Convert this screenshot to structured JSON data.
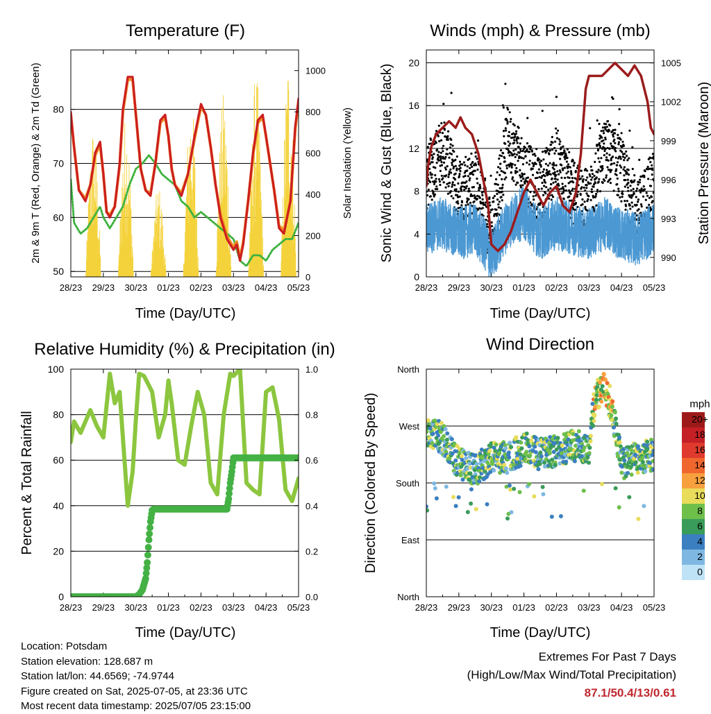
{
  "panels": {
    "temp": {
      "title": "Temperature (F)",
      "ylabel_left": "2m & 9m T (Red, Orange) & 2m Td (Green)",
      "ylabel_right": "Solar Insolation (Yellow)",
      "xlabel": "Time (Day/UTC)"
    },
    "wind": {
      "title": "Winds (mph) & Pressure (mb)",
      "ylabel_left": "Sonic Wind & Gust (Blue, Black)",
      "ylabel_right": "Station Pressure (Maroon)",
      "xlabel": "Time (Day/UTC)"
    },
    "rh": {
      "title": "Relative Humidity (%) & Precipitation (in)",
      "ylabel_left": "Percent & Total Rainfall",
      "xlabel": "Time (Day/UTC)"
    },
    "dir": {
      "title": "Wind Direction",
      "ylabel_left": "Direction (Colored By Speed)",
      "xlabel": "Time (Day/UTC)",
      "colorbar_title": "mph"
    }
  },
  "info": {
    "location": "Location: Potsdam",
    "elevation": "Station elevation: 128.687 m",
    "latlon": "Station lat/lon: 44.6569; -74.9744",
    "created": "Figure created on Sat, 2025-07-05, at 23:36 UTC",
    "recent": "Most recent data timestamp: 2025/07/05 23:15:00"
  },
  "extremes": {
    "heading": "Extremes For Past 7 Days",
    "subheading": "(High/Low/Max Wind/Total Precipitation)",
    "values": "87.1/50.4/13/0.61"
  },
  "chart_data": [
    {
      "id": "temp",
      "type": "line",
      "title": "Temperature (F)",
      "xlabel": "Time (Day/UTC)",
      "ylabel": "2m & 9m T (Red, Orange) & 2m Td (Green)",
      "y2label": "Solar Insolation (Yellow)",
      "xticks": [
        "28/23",
        "29/23",
        "30/23",
        "01/23",
        "02/23",
        "03/23",
        "04/23",
        "05/23"
      ],
      "ylim": [
        49,
        91
      ],
      "yticks": [
        50,
        60,
        70,
        80
      ],
      "y2lim": [
        0,
        1100
      ],
      "y2ticks": [
        0,
        200,
        400,
        600,
        800,
        1000
      ],
      "grid": true,
      "series": [
        {
          "name": "2m T",
          "color": "#cc1f1f",
          "axis": "left",
          "x": [
            0,
            0.1,
            0.25,
            0.45,
            0.6,
            0.75,
            0.9,
            1.0,
            1.1,
            1.2,
            1.35,
            1.5,
            1.6,
            1.75,
            1.9,
            2.0,
            2.15,
            2.3,
            2.45,
            2.6,
            2.75,
            2.9,
            3.0,
            3.1,
            3.2,
            3.4,
            3.6,
            3.8,
            4.0,
            4.15,
            4.3,
            4.45,
            4.6,
            4.8,
            5.0,
            5.1,
            5.2,
            5.3,
            5.45,
            5.6,
            5.75,
            5.9,
            6.0,
            6.1,
            6.25,
            6.4,
            6.55,
            6.75,
            6.9,
            7.0
          ],
          "y": [
            79.5,
            73,
            65,
            63,
            66,
            72,
            74,
            68,
            61,
            60,
            62,
            70,
            80,
            86,
            86,
            79,
            69,
            65,
            64,
            70,
            78,
            79,
            75,
            69,
            66,
            64,
            68,
            75,
            81,
            79,
            73,
            66,
            60,
            56,
            54,
            55,
            52,
            55,
            63,
            72,
            78,
            79,
            75,
            71,
            65,
            58,
            57,
            63,
            77,
            82
          ]
        },
        {
          "name": "9m T",
          "color": "#f08a24",
          "axis": "left",
          "x": [
            0,
            0.1,
            0.25,
            0.45,
            0.6,
            0.75,
            0.9,
            1.0,
            1.1,
            1.2,
            1.35,
            1.5,
            1.6,
            1.75,
            1.9,
            2.0,
            2.15,
            2.3,
            2.45,
            2.6,
            2.75,
            2.9,
            3.0,
            3.1,
            3.2,
            3.4,
            3.6,
            3.8,
            4.0,
            4.15,
            4.3,
            4.45,
            4.6,
            4.8,
            5.0,
            5.1,
            5.2,
            5.3,
            5.45,
            5.6,
            5.75,
            5.9,
            6.0,
            6.1,
            6.25,
            6.4,
            6.55,
            6.75,
            6.9,
            7.0
          ],
          "y": [
            79,
            73,
            65,
            63.5,
            66,
            71.5,
            73.5,
            68,
            61,
            60.5,
            62,
            69.5,
            79.5,
            85.5,
            85.5,
            79,
            69,
            65,
            64.5,
            70,
            77.5,
            78.5,
            75,
            69,
            66,
            64.5,
            68,
            74.5,
            80.5,
            79,
            73,
            66,
            60.5,
            56.5,
            54.5,
            55.5,
            52.5,
            55.5,
            63,
            71.5,
            77.5,
            78.5,
            75,
            71,
            65,
            58.5,
            57.5,
            63,
            76.5,
            81.5
          ]
        },
        {
          "name": "2m Td",
          "color": "#3fb23f",
          "axis": "left",
          "x": [
            0,
            0.1,
            0.3,
            0.5,
            0.7,
            0.9,
            1.0,
            1.2,
            1.4,
            1.6,
            1.8,
            2.0,
            2.2,
            2.4,
            2.6,
            2.8,
            3.0,
            3.2,
            3.4,
            3.6,
            3.8,
            4.0,
            4.2,
            4.4,
            4.6,
            4.8,
            5.0,
            5.2,
            5.4,
            5.6,
            5.8,
            6.0,
            6.2,
            6.4,
            6.6,
            6.8,
            7.0
          ],
          "y": [
            67,
            59,
            57,
            58,
            60,
            62,
            60,
            58,
            60,
            62,
            66,
            69,
            70,
            71.5,
            70,
            68,
            67,
            66,
            63,
            62,
            60,
            61,
            60,
            59,
            58,
            57,
            56,
            52,
            51,
            53,
            53,
            52,
            54,
            55,
            56,
            56,
            59
          ]
        },
        {
          "name": "Solar Insolation",
          "color": "#f4d23c",
          "axis": "right",
          "days": [
            0,
            1,
            2,
            3,
            4,
            5,
            6
          ],
          "daily_peak": [
            750,
            800,
            450,
            880,
            900,
            1000,
            1100
          ]
        }
      ]
    },
    {
      "id": "wind",
      "type": "scatter",
      "title": "Winds (mph) & Pressure (mb)",
      "xlabel": "Time (Day/UTC)",
      "ylabel": "Sonic Wind & Gust (Blue, Black)",
      "y2label": "Station Pressure (Maroon)",
      "xticks": [
        "28/23",
        "29/23",
        "30/23",
        "01/23",
        "02/23",
        "03/23",
        "04/23",
        "05/23"
      ],
      "ylim": [
        0,
        21.2
      ],
      "yticks": [
        0,
        4,
        8,
        12,
        16,
        20
      ],
      "y2lim": [
        988.5,
        1006
      ],
      "y2ticks": [
        990,
        993,
        996,
        999,
        1002,
        1005
      ],
      "grid": true,
      "series": [
        {
          "name": "Sonic Wind",
          "color": "#4b98d3",
          "axis": "left",
          "x": [
            0,
            0.5,
            1.0,
            1.5,
            2.0,
            2.5,
            3.0,
            3.5,
            4.0,
            4.5,
            5.0,
            5.5,
            6.0,
            6.5,
            7.0
          ],
          "y": [
            4.5,
            5,
            4,
            4.5,
            2,
            5,
            6,
            4,
            5,
            4.5,
            4,
            5,
            4,
            3.5,
            4.5
          ]
        },
        {
          "name": "Gust",
          "color": "#000000",
          "axis": "left",
          "x": [
            0,
            0.5,
            1.0,
            1.5,
            2.0,
            2.5,
            3.0,
            3.5,
            4.0,
            4.5,
            5.0,
            5.5,
            6.0,
            6.5,
            7.0
          ],
          "y": [
            9,
            12,
            8,
            9,
            4,
            13,
            10,
            8,
            11,
            8,
            7,
            12,
            10,
            6,
            9
          ]
        },
        {
          "name": "Station Pressure",
          "color": "#9b1c1c",
          "axis": "right",
          "x": [
            0,
            0.05,
            0.15,
            0.3,
            0.5,
            0.7,
            0.9,
            1.05,
            1.2,
            1.4,
            1.6,
            1.75,
            1.9,
            2.0,
            2.2,
            2.4,
            2.6,
            2.8,
            3.0,
            3.2,
            3.4,
            3.6,
            3.8,
            4.0,
            4.2,
            4.4,
            4.6,
            4.75,
            4.9,
            5.0,
            5.2,
            5.4,
            5.6,
            5.8,
            6.0,
            6.2,
            6.4,
            6.6,
            6.8,
            6.9,
            7.0
          ],
          "y": [
            995.5,
            997,
            998.5,
            999.5,
            1000,
            1000.5,
            1000,
            1000.8,
            1000,
            999.5,
            998,
            996,
            994,
            991,
            990.5,
            991,
            992,
            993.5,
            995,
            996,
            995,
            994,
            995,
            995.5,
            994,
            993.5,
            995,
            998,
            1003,
            1004,
            1004,
            1004,
            1004.5,
            1005,
            1004.5,
            1004,
            1004.8,
            1004,
            1002,
            1000,
            999.5
          ]
        }
      ]
    },
    {
      "id": "rh",
      "type": "line",
      "title": "Relative Humidity (%) & Precipitation (in)",
      "xlabel": "Time (Day/UTC)",
      "ylabel": "Percent & Total Rainfall",
      "xticks": [
        "28/23",
        "29/23",
        "30/23",
        "01/23",
        "02/23",
        "03/23",
        "04/23",
        "05/23"
      ],
      "ylim": [
        0,
        100
      ],
      "yticks": [
        0,
        20,
        40,
        60,
        80,
        100
      ],
      "y2lim": [
        0,
        1.0
      ],
      "y2ticks": [
        0.0,
        0.2,
        0.4,
        0.6,
        0.8,
        1.0
      ],
      "grid": true,
      "series": [
        {
          "name": "Relative Humidity",
          "color": "#8cc63f",
          "axis": "left",
          "x": [
            0,
            0.1,
            0.3,
            0.6,
            0.8,
            1.0,
            1.2,
            1.35,
            1.5,
            1.6,
            1.75,
            1.9,
            2.0,
            2.1,
            2.25,
            2.5,
            2.7,
            2.9,
            3.0,
            3.1,
            3.3,
            3.5,
            3.7,
            3.9,
            4.1,
            4.3,
            4.5,
            4.7,
            4.9,
            5.0,
            5.2,
            5.4,
            5.6,
            5.8,
            6.0,
            6.2,
            6.4,
            6.6,
            6.8,
            7.0
          ],
          "y": [
            68,
            77,
            72,
            82,
            75,
            70,
            98,
            85,
            90,
            70,
            40,
            55,
            78,
            98,
            97,
            90,
            70,
            80,
            95,
            85,
            60,
            58,
            75,
            90,
            80,
            50,
            45,
            80,
            98,
            97,
            100,
            50,
            47,
            45,
            90,
            92,
            78,
            47,
            42,
            52
          ]
        },
        {
          "name": "Total Precipitation",
          "color": "#44b144",
          "axis": "right",
          "x": [
            0,
            1.0,
            2.0,
            2.1,
            2.2,
            2.3,
            2.35,
            2.4,
            2.45,
            2.5,
            2.55,
            3.0,
            4.0,
            4.8,
            4.85,
            4.9,
            4.95,
            5.0,
            6.0,
            7.0
          ],
          "y": [
            0,
            0,
            0,
            0.01,
            0.03,
            0.08,
            0.15,
            0.25,
            0.33,
            0.38,
            0.385,
            0.385,
            0.385,
            0.385,
            0.43,
            0.5,
            0.55,
            0.61,
            0.61,
            0.61
          ]
        }
      ]
    },
    {
      "id": "dir",
      "type": "scatter",
      "title": "Wind Direction",
      "xlabel": "Time (Day/UTC)",
      "ylabel": "Direction (Colored By Speed)",
      "xticks": [
        "28/23",
        "29/23",
        "30/23",
        "01/23",
        "02/23",
        "03/23",
        "04/23",
        "05/23"
      ],
      "ylim": [
        0,
        360
      ],
      "yticks": [
        "North",
        "East",
        "South",
        "West",
        "North"
      ],
      "grid": true,
      "colorbar": {
        "title": "mph",
        "labels": [
          "20+",
          "18",
          "16",
          "14",
          "12",
          "10",
          "8",
          "6",
          "4",
          "2",
          "0"
        ],
        "colors": [
          "#9e1a1a",
          "#c42026",
          "#e03a2e",
          "#f0672e",
          "#f8a03e",
          "#e8dc5a",
          "#6fbf4b",
          "#3a9c5a",
          "#3b7fc0",
          "#7eb8e2",
          "#bfe3f6"
        ]
      },
      "series": [
        {
          "name": "Direction",
          "x": [
            0,
            0.5,
            1.0,
            1.5,
            2.0,
            2.5,
            3.0,
            3.5,
            4.0,
            4.5,
            5.0,
            5.2,
            5.5,
            5.7,
            6.0,
            6.5,
            7.0
          ],
          "y": [
            265,
            250,
            210,
            200,
            220,
            220,
            235,
            225,
            230,
            240,
            235,
            320,
            330,
            300,
            210,
            220,
            225
          ]
        }
      ]
    }
  ]
}
